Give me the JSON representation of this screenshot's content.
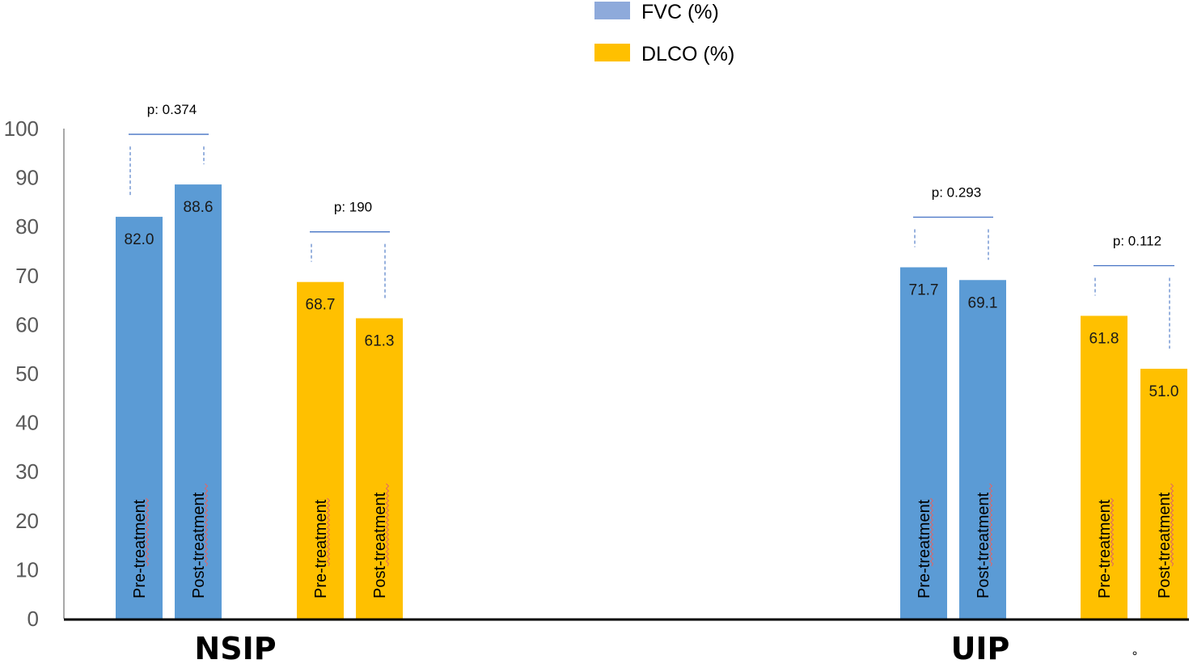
{
  "chart_data": {
    "type": "bar",
    "categories": [
      "NSIP",
      "UIP"
    ],
    "ylim": [
      0,
      100
    ],
    "yticks": [
      0,
      10,
      20,
      30,
      40,
      50,
      60,
      70,
      80,
      90,
      100
    ],
    "grid": false,
    "legend_position": "top-center",
    "series": [
      {
        "name": "FVC (%)",
        "color": "#5b9bd5",
        "legend_color": "#8eaadb",
        "values": {
          "pre": [
            82.0,
            71.7
          ],
          "post": [
            88.6,
            69.1
          ]
        }
      },
      {
        "name": "DLCO (%)",
        "color": "#ffc000",
        "legend_color": "#ffc000",
        "values": {
          "pre": [
            68.7,
            61.8
          ],
          "post": [
            61.3,
            51.0
          ]
        }
      }
    ],
    "bar_labels": {
      "pre": "Pre-treatment",
      "post": "Post-treatment"
    },
    "value_labels": {
      "NSIP": {
        "FVC (%)": [
          "82.0",
          "88.6"
        ],
        "DLCO (%)": [
          "68.7",
          "61.3"
        ]
      },
      "UIP": {
        "FVC (%)": [
          "71.7",
          "69.1"
        ],
        "DLCO (%)": [
          "61.8",
          "51.0"
        ]
      }
    },
    "p_values": {
      "NSIP": {
        "FVC (%)": "p: 0.374",
        "DLCO (%)": "p: 190"
      },
      "UIP": {
        "FVC (%)": "p: 0.293",
        "DLCO (%)": "p: 0.112"
      }
    },
    "footnote_mark": "°"
  }
}
